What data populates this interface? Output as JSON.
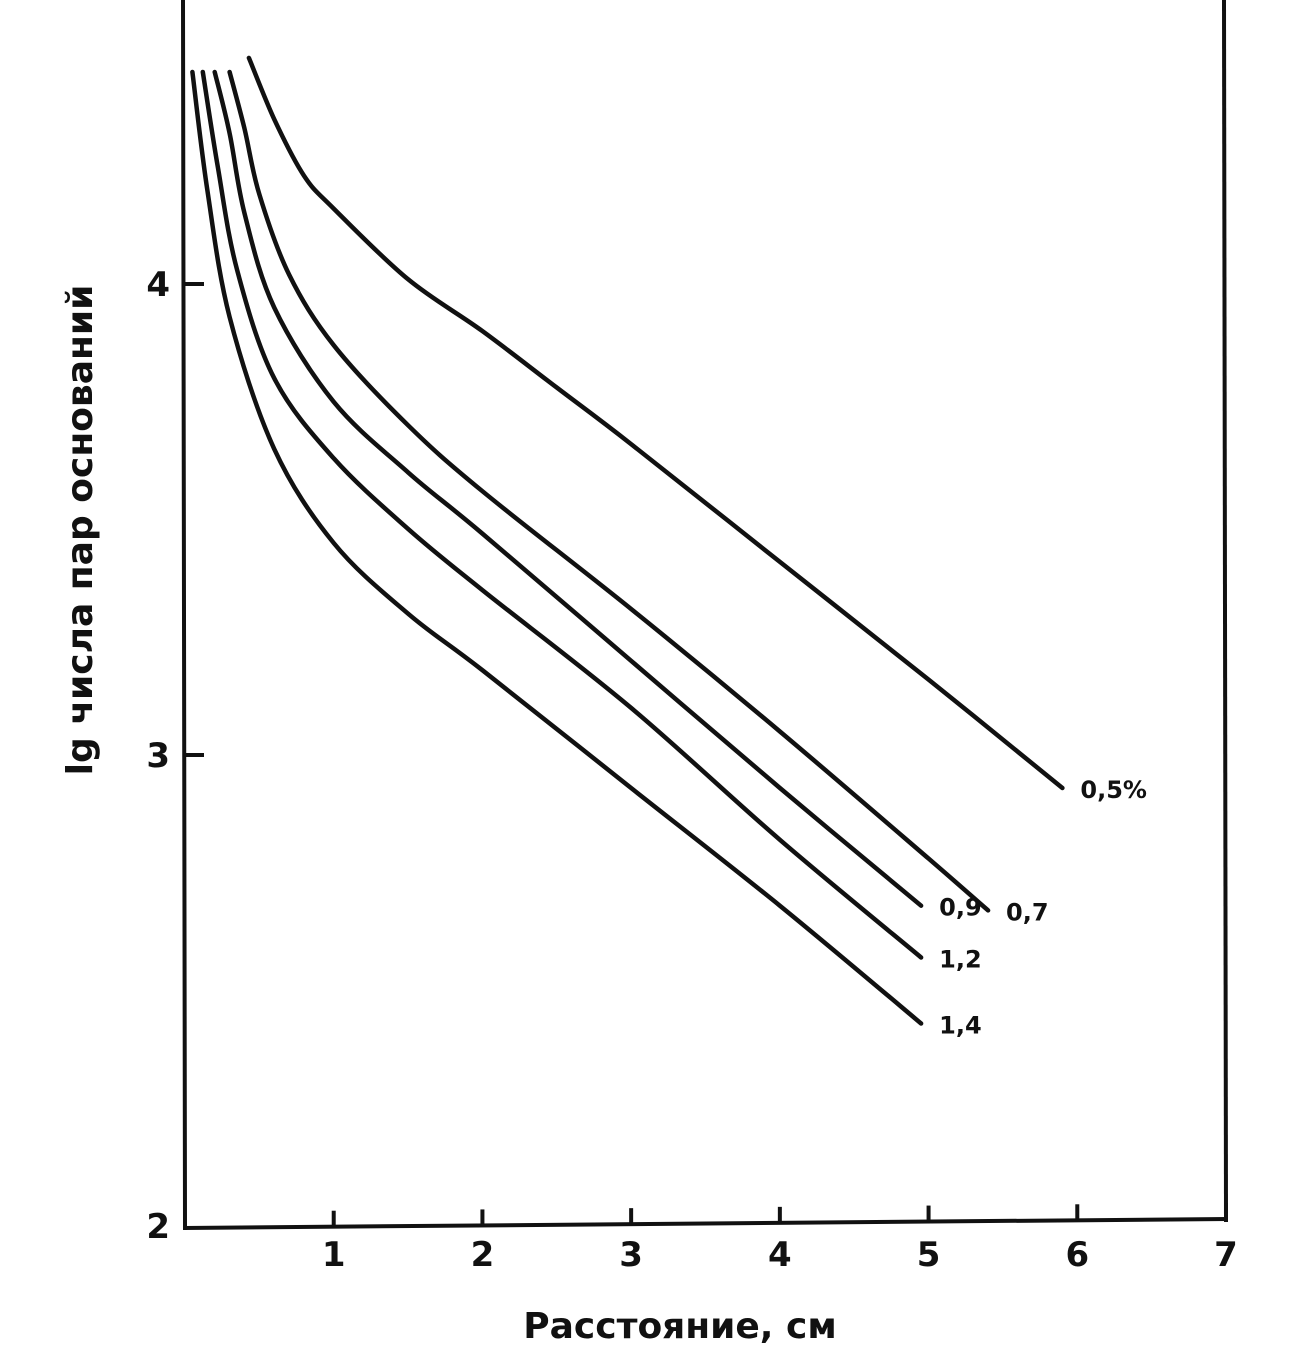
{
  "chart_data": {
    "type": "line",
    "title": "",
    "xlabel": "Расстояние, см",
    "ylabel": "lg числа пар оснований",
    "xlim": [
      0,
      7
    ],
    "ylim": [
      2,
      4.6
    ],
    "x_ticks": [
      "1",
      "2",
      "3",
      "4",
      "5",
      "6",
      "7"
    ],
    "y_ticks": [
      "2",
      "3",
      "4"
    ],
    "grid": false,
    "legend": "labels at line ends",
    "line_color": "#111111",
    "series": [
      {
        "name": "0,5%",
        "points": [
          [
            0.43,
            4.48
          ],
          [
            0.6,
            4.35
          ],
          [
            0.8,
            4.23
          ],
          [
            1.0,
            4.16
          ],
          [
            1.5,
            4.01
          ],
          [
            2.0,
            3.9
          ],
          [
            2.5,
            3.78
          ],
          [
            3.0,
            3.66
          ],
          [
            4.0,
            3.41
          ],
          [
            5.0,
            3.16
          ],
          [
            5.9,
            2.93
          ]
        ]
      },
      {
        "name": "0,7",
        "points": [
          [
            0.3,
            4.45
          ],
          [
            0.4,
            4.33
          ],
          [
            0.5,
            4.19
          ],
          [
            0.7,
            4.02
          ],
          [
            1.0,
            3.87
          ],
          [
            1.5,
            3.7
          ],
          [
            2.0,
            3.56
          ],
          [
            3.0,
            3.31
          ],
          [
            4.0,
            3.05
          ],
          [
            5.0,
            2.78
          ],
          [
            5.4,
            2.67
          ]
        ]
      },
      {
        "name": "0,9",
        "points": [
          [
            0.2,
            4.45
          ],
          [
            0.3,
            4.32
          ],
          [
            0.4,
            4.15
          ],
          [
            0.6,
            3.95
          ],
          [
            1.0,
            3.75
          ],
          [
            1.5,
            3.6
          ],
          [
            2.0,
            3.47
          ],
          [
            3.0,
            3.2
          ],
          [
            4.0,
            2.93
          ],
          [
            4.95,
            2.68
          ]
        ]
      },
      {
        "name": "1,2",
        "points": [
          [
            0.12,
            4.45
          ],
          [
            0.22,
            4.25
          ],
          [
            0.35,
            4.03
          ],
          [
            0.6,
            3.8
          ],
          [
            1.0,
            3.63
          ],
          [
            1.5,
            3.48
          ],
          [
            2.0,
            3.35
          ],
          [
            3.0,
            3.1
          ],
          [
            4.0,
            2.82
          ],
          [
            4.95,
            2.57
          ]
        ]
      },
      {
        "name": "1,4",
        "points": [
          [
            0.05,
            4.45
          ],
          [
            0.15,
            4.2
          ],
          [
            0.3,
            3.93
          ],
          [
            0.6,
            3.65
          ],
          [
            1.0,
            3.45
          ],
          [
            1.5,
            3.3
          ],
          [
            2.0,
            3.18
          ],
          [
            3.0,
            2.93
          ],
          [
            4.0,
            2.68
          ],
          [
            4.95,
            2.43
          ]
        ]
      }
    ]
  }
}
